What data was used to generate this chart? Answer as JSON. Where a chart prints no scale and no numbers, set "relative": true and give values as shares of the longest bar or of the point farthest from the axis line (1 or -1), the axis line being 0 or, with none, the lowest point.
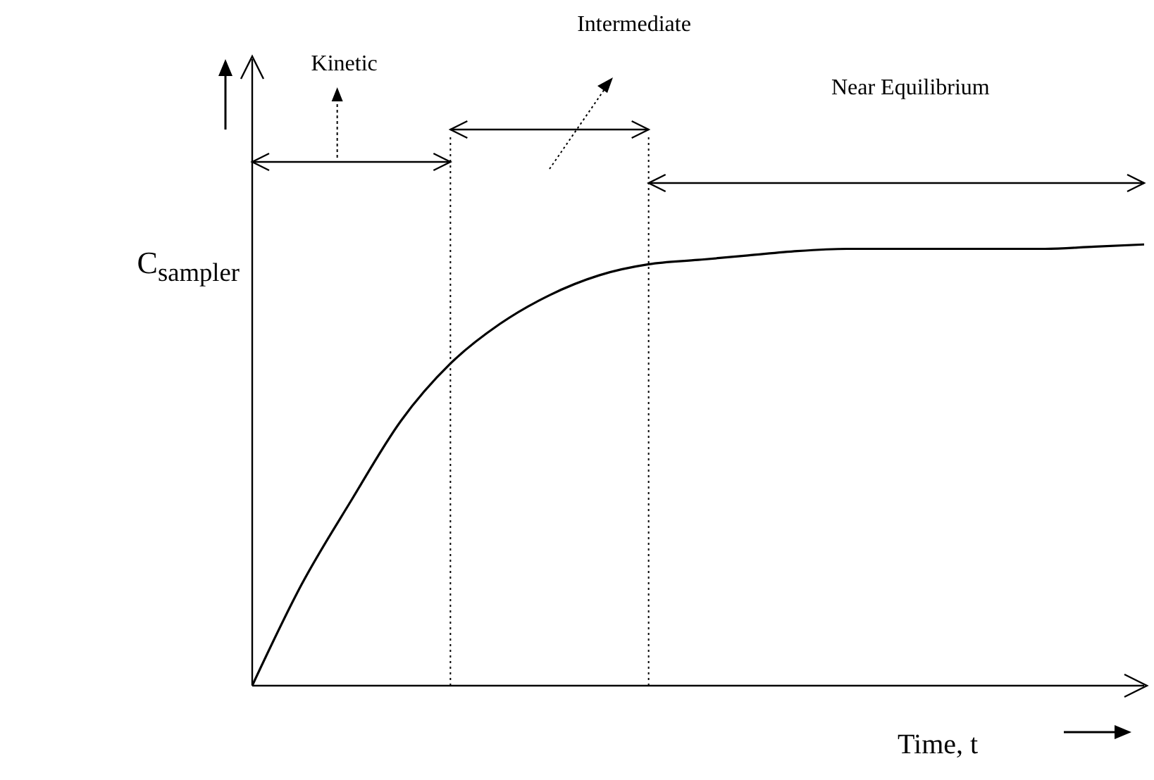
{
  "chart_data": {
    "type": "line",
    "relative": true,
    "xlabel": "Time, t",
    "ylabel": "C$_{sampler}$",
    "annotations": [
      "Kinetic",
      "Intermediate",
      "Near Equilibrium"
    ],
    "categories": [
      null,
      null,
      null,
      null,
      null,
      null,
      null,
      null,
      null,
      null,
      null,
      null,
      null,
      null,
      null,
      null,
      null,
      null,
      null
    ],
    "series": [
      {
        "color": "#000000",
        "values": [
          0,
          0.23,
          0.42,
          0.6,
          0.73,
          0.82,
          0.885,
          0.93,
          0.955,
          0.965,
          0.975,
          0.985,
          0.99,
          0.99,
          0.99,
          0.99,
          0.99,
          0.995,
          1
        ]
      }
    ]
  }
}
